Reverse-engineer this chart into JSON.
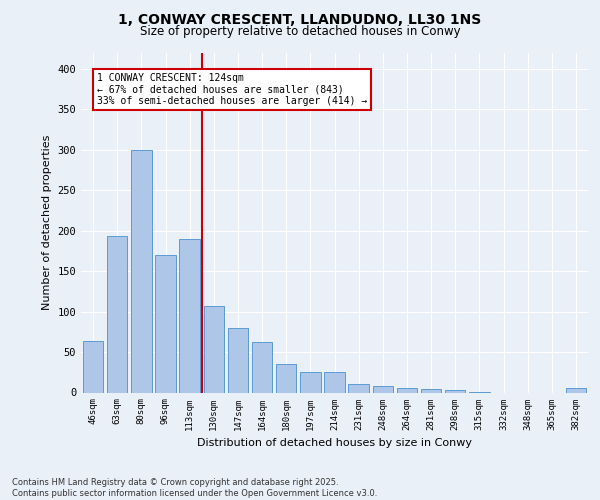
{
  "title_line1": "1, CONWAY CRESCENT, LLANDUDNO, LL30 1NS",
  "title_line2": "Size of property relative to detached houses in Conwy",
  "xlabel": "Distribution of detached houses by size in Conwy",
  "ylabel": "Number of detached properties",
  "categories": [
    "46sqm",
    "63sqm",
    "80sqm",
    "96sqm",
    "113sqm",
    "130sqm",
    "147sqm",
    "164sqm",
    "180sqm",
    "197sqm",
    "214sqm",
    "231sqm",
    "248sqm",
    "264sqm",
    "281sqm",
    "298sqm",
    "315sqm",
    "332sqm",
    "348sqm",
    "365sqm",
    "382sqm"
  ],
  "values": [
    64,
    193,
    299,
    170,
    190,
    107,
    80,
    62,
    35,
    25,
    25,
    11,
    8,
    5,
    4,
    3,
    1,
    0,
    0,
    0,
    6
  ],
  "bar_color": "#aec6e8",
  "bar_edge_color": "#5b9bd5",
  "background_color": "#eaf0f8",
  "grid_color": "#ffffff",
  "vline_x": 5.0,
  "vline_color": "#cc0000",
  "annotation_text": "1 CONWAY CRESCENT: 124sqm\n← 67% of detached houses are smaller (843)\n33% of semi-detached houses are larger (414) →",
  "annotation_box_color": "#ffffff",
  "annotation_box_edge": "#cc0000",
  "ylim": [
    0,
    420
  ],
  "yticks": [
    0,
    50,
    100,
    150,
    200,
    250,
    300,
    350,
    400
  ],
  "footer_text": "Contains HM Land Registry data © Crown copyright and database right 2025.\nContains public sector information licensed under the Open Government Licence v3.0."
}
